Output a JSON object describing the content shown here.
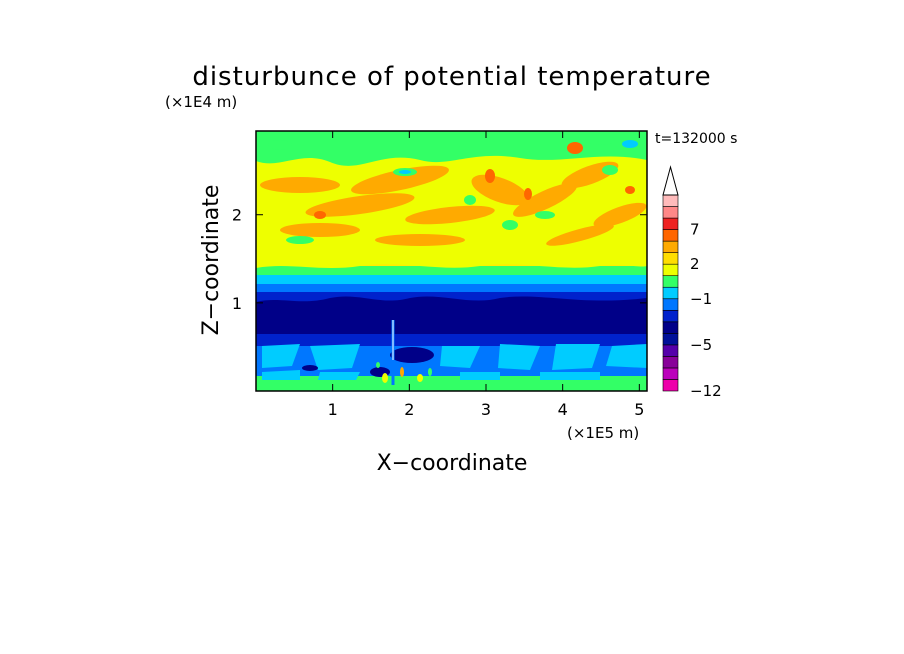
{
  "chart_data": {
    "type": "heatmap",
    "title": "disturbunce of potential temperature",
    "xlabel": "X−coordinate",
    "ylabel": "Z−coordinate",
    "x_unit": "(×1E5 m)",
    "y_unit": "(×1E4 m)",
    "time_label": "t=132000 s",
    "xlim": [
      0,
      5.1
    ],
    "ylim": [
      0,
      2.95
    ],
    "x_ticks": [
      1,
      2,
      3,
      4,
      5
    ],
    "y_ticks": [
      1,
      2
    ],
    "x_tick_labels": [
      "1",
      "2",
      "3",
      "4",
      "5"
    ],
    "y_tick_labels": [
      "1",
      "2"
    ],
    "colorbar": {
      "levels": [
        -12,
        -10,
        -8,
        -6,
        -5,
        -4,
        -3,
        -2,
        -1,
        0,
        1,
        2,
        3,
        5,
        7,
        9,
        11
      ],
      "colors": [
        "#ee00aa",
        "#bb00bb",
        "#880099",
        "#5500aa",
        "#001199",
        "#000088",
        "#0022cc",
        "#0077ff",
        "#00ccff",
        "#33ff66",
        "#eeff00",
        "#ffdd00",
        "#ffaa00",
        "#ff6600",
        "#ee2222",
        "#ff8888",
        "#ffbbbb"
      ],
      "tick_values": [
        7,
        2,
        -1,
        -5,
        -12
      ],
      "tick_labels": [
        "7",
        "2",
        "−1",
        "−5",
        "−12"
      ],
      "extend": "max"
    }
  }
}
